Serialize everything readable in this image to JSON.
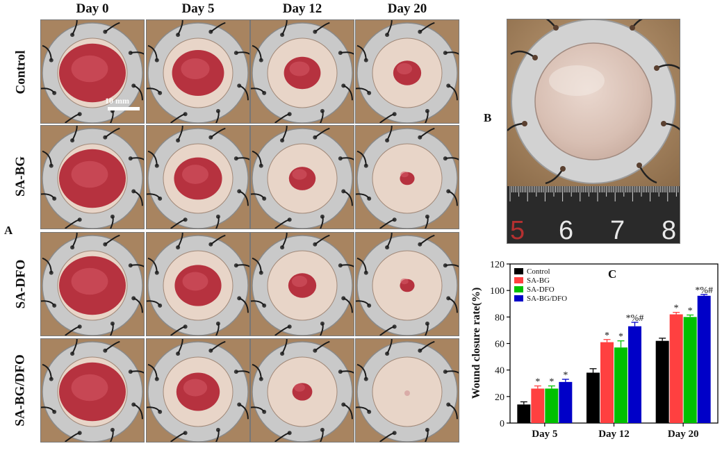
{
  "panel_labels": {
    "A": "A",
    "B": "B",
    "C": "C"
  },
  "columns": [
    "Day 0",
    "Day 5",
    "Day 12",
    "Day 20"
  ],
  "rows": [
    "Control",
    "SA-BG",
    "SA-DFO",
    "SA-BG/DFO"
  ],
  "scale_bar_label": "10 mm",
  "ruler_labels": [
    "5",
    "6",
    "7",
    "8"
  ],
  "wound_levels": [
    [
      1.0,
      0.78,
      0.55,
      0.42
    ],
    [
      1.0,
      0.72,
      0.4,
      0.22
    ],
    [
      1.0,
      0.7,
      0.42,
      0.22
    ],
    [
      1.0,
      0.65,
      0.3,
      0.05
    ]
  ],
  "colors": {
    "Control": "#000000",
    "SA-BG": "#ff4040",
    "SA-DFO": "#00c000",
    "SA-BG/DFO": "#0000c8",
    "wound": "#b02030",
    "skin": "#e8d5c8",
    "ring": "#c9c9c9"
  },
  "chart_data": {
    "type": "bar",
    "title": "",
    "xlabel": "",
    "ylabel": "Wound closure rate(%)",
    "ylim": [
      0,
      120
    ],
    "yticks": [
      "0",
      "20",
      "40",
      "60",
      "80",
      "100",
      "120"
    ],
    "categories": [
      "Day 5",
      "Day 12",
      "Day 20"
    ],
    "legend_position": "top-left",
    "series": [
      {
        "name": "Control",
        "values": [
          14,
          38,
          62
        ],
        "errors": [
          2,
          3,
          2
        ],
        "annotations": [
          "",
          "",
          ""
        ]
      },
      {
        "name": "SA-BG",
        "values": [
          26,
          61,
          82
        ],
        "errors": [
          2,
          2,
          1.5
        ],
        "annotations": [
          "*",
          "*",
          "*"
        ]
      },
      {
        "name": "SA-DFO",
        "values": [
          26,
          57,
          80
        ],
        "errors": [
          2,
          5,
          1.5
        ],
        "annotations": [
          "*",
          "*",
          "*"
        ]
      },
      {
        "name": "SA-BG/DFO",
        "values": [
          31,
          73,
          96
        ],
        "errors": [
          2,
          3,
          1
        ],
        "annotations": [
          "*",
          "*%#",
          "*%#"
        ]
      }
    ]
  }
}
